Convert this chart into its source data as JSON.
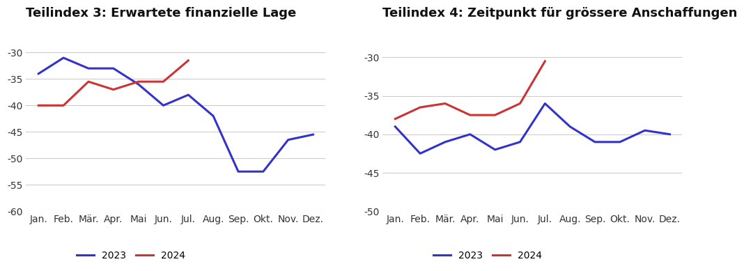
{
  "months": [
    "Jan.",
    "Feb.",
    "Mär.",
    "Apr.",
    "Mai",
    "Jun.",
    "Jul.",
    "Aug.",
    "Sep.",
    "Okt.",
    "Nov.",
    "Dez."
  ],
  "chart1": {
    "title": "Teilindex 3: Erwartete finanzielle Lage",
    "blue_2023": [
      -34,
      -31,
      -33,
      -33,
      -36,
      -40,
      -38,
      -42,
      -52.5,
      -52.5,
      -46.5,
      -45.5
    ],
    "red_2024": [
      -40,
      -40,
      -35.5,
      -37,
      -35.5,
      -35.5,
      -31.5,
      null,
      null,
      null,
      null,
      null
    ],
    "ylim": [
      -60,
      -28
    ],
    "yticks": [
      -60,
      -55,
      -50,
      -45,
      -40,
      -35,
      -30
    ]
  },
  "chart2": {
    "title": "Teilindex 4: Zeitpunkt für grössere Anschaffungen",
    "blue_2023": [
      -39,
      -42.5,
      -41,
      -40,
      -42,
      -41,
      -36,
      -39,
      -41,
      -41,
      -39.5,
      -40
    ],
    "red_2024": [
      -38,
      -36.5,
      -36,
      -37.5,
      -37.5,
      -36,
      -30.5,
      null,
      null,
      null,
      null,
      null
    ],
    "ylim": [
      -50,
      -28
    ],
    "yticks": [
      -50,
      -45,
      -40,
      -35,
      -30
    ]
  },
  "color_blue": "#3333cc",
  "color_red": "#cc3333",
  "legend_labels": [
    "2023",
    "2024"
  ],
  "title_fontsize": 13,
  "tick_fontsize": 10,
  "legend_fontsize": 10,
  "background_color": "#ffffff",
  "grid_color": "#cccccc"
}
